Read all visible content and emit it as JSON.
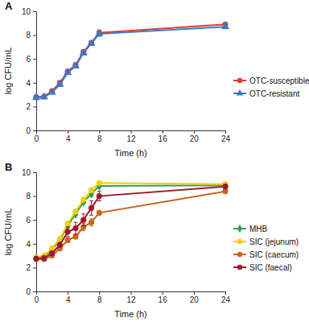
{
  "chart_data": [
    {
      "type": "line",
      "title": "A",
      "x_label": "Time (h)",
      "y_label": "log CFU/mL",
      "x": [
        0,
        1,
        2,
        3,
        4,
        5,
        6,
        7,
        8,
        24
      ],
      "xlim": [
        0,
        24
      ],
      "xticks": [
        0,
        4,
        8,
        12,
        16,
        20,
        24
      ],
      "ylim": [
        0,
        10
      ],
      "yticks": [
        0,
        2,
        4,
        6,
        8,
        10
      ],
      "grid": false,
      "legend": "right",
      "series": [
        {
          "name": "OTC-susceptible",
          "color": "#e03c31",
          "marker": "circle",
          "values": [
            2.8,
            2.85,
            3.3,
            4.0,
            4.95,
            5.5,
            6.6,
            7.35,
            8.2,
            8.9
          ],
          "errors": [
            0.05,
            0.05,
            0.1,
            0.1,
            0.15,
            0.15,
            0.15,
            0.15,
            0.25,
            0.1
          ]
        },
        {
          "name": "OTC-resistant",
          "color": "#3c78c8",
          "marker": "triangle",
          "values": [
            2.75,
            2.8,
            3.2,
            3.85,
            4.85,
            5.4,
            6.5,
            7.3,
            8.1,
            8.7
          ],
          "errors": [
            0.05,
            0.05,
            0.1,
            0.1,
            0.15,
            0.15,
            0.15,
            0.15,
            0.2,
            0.1
          ]
        }
      ]
    },
    {
      "type": "line",
      "title": "B",
      "x_label": "Time (h)",
      "y_label": "log CFU/mL",
      "x": [
        0,
        1,
        2,
        3,
        4,
        5,
        6,
        7,
        8,
        24
      ],
      "xlim": [
        0,
        24
      ],
      "xticks": [
        0,
        4,
        8,
        12,
        16,
        20,
        24
      ],
      "ylim": [
        0,
        10
      ],
      "yticks": [
        0,
        2,
        4,
        6,
        8,
        10
      ],
      "grid": false,
      "legend": "right",
      "series": [
        {
          "name": "MHB",
          "color": "#2e9e5a",
          "marker": "diamond",
          "values": [
            2.8,
            2.9,
            3.5,
            4.3,
            5.5,
            6.5,
            7.5,
            8.2,
            8.85,
            8.9
          ],
          "errors": [
            0.05,
            0.05,
            0.1,
            0.1,
            0.15,
            0.15,
            0.15,
            0.2,
            0.1,
            0.1
          ]
        },
        {
          "name": "SIC (jejunum)",
          "color": "#f2cf00",
          "marker": "circle",
          "values": [
            2.85,
            3.0,
            3.6,
            4.4,
            5.7,
            6.7,
            7.7,
            8.5,
            9.1,
            9.0
          ],
          "errors": [
            0.05,
            0.05,
            0.1,
            0.1,
            0.15,
            0.15,
            0.15,
            0.2,
            0.1,
            0.1
          ]
        },
        {
          "name": "SIC (caecum)",
          "color": "#c8641e",
          "marker": "circle",
          "values": [
            2.7,
            2.7,
            3.0,
            3.6,
            4.3,
            4.6,
            5.4,
            5.8,
            6.6,
            8.4
          ],
          "errors": [
            0.05,
            0.05,
            0.1,
            0.1,
            0.2,
            0.2,
            0.3,
            0.3,
            0.2,
            0.15
          ]
        },
        {
          "name": "SIC (faecal)",
          "color": "#a0182e",
          "marker": "circle",
          "values": [
            2.75,
            2.8,
            3.2,
            3.9,
            5.0,
            5.3,
            6.0,
            7.0,
            8.0,
            8.8
          ],
          "errors": [
            0.05,
            0.05,
            0.15,
            0.2,
            0.4,
            0.5,
            0.5,
            0.6,
            0.4,
            0.2
          ]
        }
      ]
    }
  ]
}
